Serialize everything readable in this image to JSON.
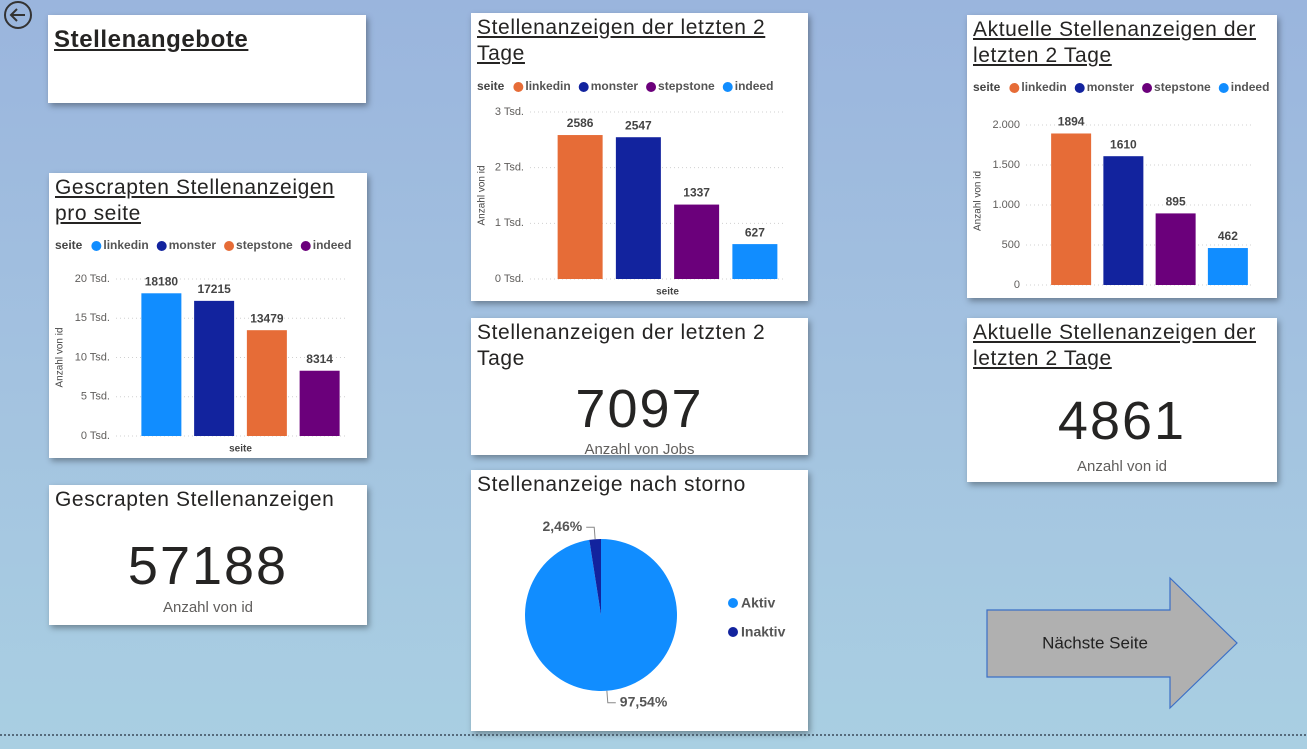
{
  "header": {
    "title": "Stellenangebote"
  },
  "chart_data": [
    {
      "type": "bar",
      "title": "Gescrapten Stellenanzeigen pro seite",
      "legend_title": "seite",
      "categories": [
        "linkedin",
        "monster",
        "stepstone",
        "indeed"
      ],
      "values": [
        18180,
        17215,
        13479,
        8314
      ],
      "colors": [
        "#118dff",
        "#12239e",
        "#e66c37",
        "#6b007b"
      ],
      "xlabel": "seite",
      "ylabel": "Anzahl von id",
      "ylim": [
        0,
        20000
      ],
      "yticks": [
        {
          "value": 0,
          "label": "0 Tsd."
        },
        {
          "value": 5000,
          "label": "5 Tsd."
        },
        {
          "value": 10000,
          "label": "10 Tsd."
        },
        {
          "value": 15000,
          "label": "15 Tsd."
        },
        {
          "value": 20000,
          "label": "20 Tsd."
        }
      ],
      "grid": true
    },
    {
      "type": "bar",
      "title": "Stellenanzeigen der letzten 2 Tage",
      "legend_title": "seite",
      "categories": [
        "linkedin",
        "monster",
        "stepstone",
        "indeed"
      ],
      "values": [
        2586,
        2547,
        1337,
        627
      ],
      "colors": [
        "#e66c37",
        "#12239e",
        "#6b007b",
        "#118dff"
      ],
      "xlabel": "seite",
      "ylabel": "Anzahl von id",
      "ylim": [
        0,
        3000
      ],
      "yticks": [
        {
          "value": 0,
          "label": "0 Tsd."
        },
        {
          "value": 1000,
          "label": "1 Tsd."
        },
        {
          "value": 2000,
          "label": "2 Tsd."
        },
        {
          "value": 3000,
          "label": "3 Tsd."
        }
      ],
      "grid": true
    },
    {
      "type": "bar",
      "title": "Aktuelle Stellenanzeigen der letzten 2 Tage",
      "legend_title": "seite",
      "categories": [
        "linkedin",
        "monster",
        "stepstone",
        "indeed"
      ],
      "values": [
        1894,
        1610,
        895,
        462
      ],
      "colors": [
        "#e66c37",
        "#12239e",
        "#6b007b",
        "#118dff"
      ],
      "ylabel": "Anzahl von id",
      "ylim": [
        0,
        2100
      ],
      "yticks": [
        0,
        500,
        {
          "value": 1000,
          "label": "1.000"
        },
        {
          "value": 1500,
          "label": "1.500"
        },
        {
          "value": 2000,
          "label": "2.000"
        }
      ],
      "grid": true
    },
    {
      "type": "pie",
      "title": "Stellenanzeige nach storno",
      "categories": [
        "Aktiv",
        "Inaktiv"
      ],
      "values": [
        97.54,
        2.46
      ],
      "value_labels": [
        "97,54%",
        "2,46%"
      ],
      "colors": [
        "#118dff",
        "#12239e"
      ]
    }
  ],
  "cards": [
    {
      "title": "Gescrapten Stellenanzeigen",
      "value": 57188,
      "label": "Anzahl von id"
    },
    {
      "title": "Stellenanzeigen der letzten 2 Tage",
      "value": 7097,
      "label": "Anzahl von Jobs"
    },
    {
      "title": "Aktuelle Stellenanzeigen der letzten 2 Tage",
      "value": 4861,
      "label": "Anzahl von id"
    }
  ],
  "button": {
    "label": "Nächste Seite"
  }
}
